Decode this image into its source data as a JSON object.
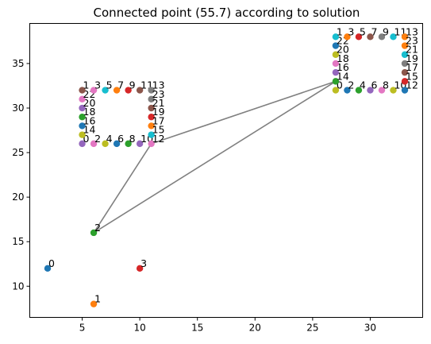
{
  "chart_data": {
    "type": "scatter",
    "title": "Connected point (55.7) according to solution",
    "xlabel": "",
    "ylabel": "",
    "xlim": [
      0.45,
      34.55
    ],
    "ylim": [
      6.5,
      39.5
    ],
    "xticks": [
      5,
      10,
      15,
      20,
      25,
      30
    ],
    "yticks": [
      10,
      15,
      20,
      25,
      30,
      35
    ],
    "grid": false,
    "legend": "none",
    "points": [
      {
        "label": "0",
        "x": 2,
        "y": 12,
        "color": "#1f77b4"
      },
      {
        "label": "1",
        "x": 6,
        "y": 8,
        "color": "#ff7f0e"
      },
      {
        "label": "2",
        "x": 6,
        "y": 16,
        "color": "#2ca02c"
      },
      {
        "label": "3",
        "x": 10,
        "y": 12,
        "color": "#d62728"
      },
      {
        "label": "0",
        "x": 5,
        "y": 26,
        "color": "#9467bd"
      },
      {
        "label": "2",
        "x": 6,
        "y": 26,
        "color": "#e377c2"
      },
      {
        "label": "4",
        "x": 7,
        "y": 26,
        "color": "#bcbd22"
      },
      {
        "label": "6",
        "x": 8,
        "y": 26,
        "color": "#1f77b4"
      },
      {
        "label": "8",
        "x": 9,
        "y": 26,
        "color": "#2ca02c"
      },
      {
        "label": "10",
        "x": 10,
        "y": 26,
        "color": "#9467bd"
      },
      {
        "label": "12",
        "x": 11,
        "y": 26,
        "color": "#e377c2"
      },
      {
        "label": "14",
        "x": 5,
        "y": 27,
        "color": "#bcbd22"
      },
      {
        "label": "16",
        "x": 5,
        "y": 28,
        "color": "#1f77b4"
      },
      {
        "label": "18",
        "x": 5,
        "y": 29,
        "color": "#2ca02c"
      },
      {
        "label": "20",
        "x": 5,
        "y": 30,
        "color": "#9467bd"
      },
      {
        "label": "22",
        "x": 5,
        "y": 31,
        "color": "#e377c2"
      },
      {
        "label": "1",
        "x": 5,
        "y": 32,
        "color": "#8c564b"
      },
      {
        "label": "3",
        "x": 6,
        "y": 32,
        "color": "#e377c2"
      },
      {
        "label": "5",
        "x": 7,
        "y": 32,
        "color": "#17becf"
      },
      {
        "label": "7",
        "x": 8,
        "y": 32,
        "color": "#ff7f0e"
      },
      {
        "label": "9",
        "x": 9,
        "y": 32,
        "color": "#d62728"
      },
      {
        "label": "11",
        "x": 10,
        "y": 32,
        "color": "#8c564b"
      },
      {
        "label": "13",
        "x": 11,
        "y": 32,
        "color": "#7f7f7f"
      },
      {
        "label": "23",
        "x": 11,
        "y": 31,
        "color": "#7f7f7f"
      },
      {
        "label": "21",
        "x": 11,
        "y": 30,
        "color": "#8c564b"
      },
      {
        "label": "19",
        "x": 11,
        "y": 29,
        "color": "#d62728"
      },
      {
        "label": "17",
        "x": 11,
        "y": 28,
        "color": "#ff7f0e"
      },
      {
        "label": "15",
        "x": 11,
        "y": 27,
        "color": "#17becf"
      },
      {
        "label": "0",
        "x": 27,
        "y": 32,
        "color": "#bcbd22"
      },
      {
        "label": "2",
        "x": 28,
        "y": 32,
        "color": "#1f77b4"
      },
      {
        "label": "4",
        "x": 29,
        "y": 32,
        "color": "#2ca02c"
      },
      {
        "label": "6",
        "x": 30,
        "y": 32,
        "color": "#9467bd"
      },
      {
        "label": "8",
        "x": 31,
        "y": 32,
        "color": "#e377c2"
      },
      {
        "label": "10",
        "x": 32,
        "y": 32,
        "color": "#bcbd22"
      },
      {
        "label": "12",
        "x": 33,
        "y": 32,
        "color": "#1f77b4"
      },
      {
        "label": "14",
        "x": 27,
        "y": 33,
        "color": "#2ca02c"
      },
      {
        "label": "16",
        "x": 27,
        "y": 34,
        "color": "#9467bd"
      },
      {
        "label": "18",
        "x": 27,
        "y": 35,
        "color": "#e377c2"
      },
      {
        "label": "20",
        "x": 27,
        "y": 36,
        "color": "#bcbd22"
      },
      {
        "label": "22",
        "x": 27,
        "y": 37,
        "color": "#1f77b4"
      },
      {
        "label": "1",
        "x": 27,
        "y": 38,
        "color": "#17becf"
      },
      {
        "label": "3",
        "x": 28,
        "y": 38,
        "color": "#ff7f0e"
      },
      {
        "label": "5",
        "x": 29,
        "y": 38,
        "color": "#d62728"
      },
      {
        "label": "7",
        "x": 30,
        "y": 38,
        "color": "#8c564b"
      },
      {
        "label": "9",
        "x": 31,
        "y": 38,
        "color": "#7f7f7f"
      },
      {
        "label": "11",
        "x": 32,
        "y": 38,
        "color": "#17becf"
      },
      {
        "label": "13",
        "x": 33,
        "y": 38,
        "color": "#ff7f0e"
      },
      {
        "label": "23",
        "x": 33,
        "y": 37,
        "color": "#ff7f0e"
      },
      {
        "label": "21",
        "x": 33,
        "y": 36,
        "color": "#17becf"
      },
      {
        "label": "19",
        "x": 33,
        "y": 35,
        "color": "#7f7f7f"
      },
      {
        "label": "17",
        "x": 33,
        "y": 34,
        "color": "#8c564b"
      },
      {
        "label": "15",
        "x": 33,
        "y": 33,
        "color": "#d62728"
      }
    ],
    "connections": [
      {
        "x": [
          6,
          11,
          27,
          6
        ],
        "y": [
          16,
          26,
          33,
          16
        ],
        "color": "#808080"
      }
    ]
  }
}
